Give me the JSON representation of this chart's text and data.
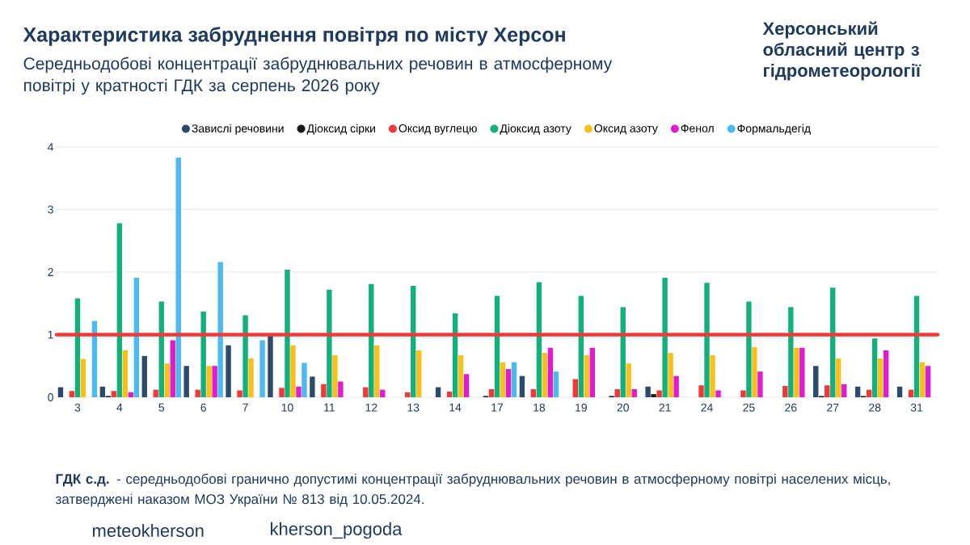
{
  "chart_data": {
    "type": "bar",
    "title": "Характеристика забруднення повітря по місту Херсон",
    "subtitle": "Середньодобові концентрації забруднювальних речовин в атмосферному повітрі у кратності ГДК за серпень 2026 року",
    "categories": [
      "3",
      "4",
      "5",
      "6",
      "7",
      "10",
      "11",
      "12",
      "13",
      "14",
      "17",
      "18",
      "19",
      "20",
      "21",
      "24",
      "25",
      "26",
      "27",
      "28",
      "31"
    ],
    "series": [
      {
        "name": "Завислі речовини",
        "color": "#2c4a6e",
        "values": [
          0.16,
          0.17,
          0.66,
          0.5,
          0.83,
          0.98,
          0.33,
          null,
          null,
          0.16,
          null,
          0.34,
          null,
          null,
          0.17,
          null,
          null,
          null,
          0.5,
          0.17,
          0.17
        ]
      },
      {
        "name": "Діоксид сірки",
        "color": "#1a1a1a",
        "values": [
          null,
          0.02,
          null,
          null,
          null,
          null,
          null,
          null,
          null,
          null,
          0.02,
          null,
          null,
          0.02,
          0.05,
          null,
          null,
          null,
          0.02,
          0.02,
          null
        ]
      },
      {
        "name": "Оксид вуглецю",
        "color": "#f03a3a",
        "values": [
          0.1,
          0.1,
          0.12,
          0.12,
          0.11,
          0.15,
          0.21,
          0.16,
          0.08,
          0.09,
          0.13,
          0.13,
          0.29,
          0.13,
          0.11,
          0.19,
          0.11,
          0.18,
          0.19,
          0.12,
          0.12
        ]
      },
      {
        "name": "Діоксид азоту",
        "color": "#12b07a",
        "values": [
          1.58,
          2.78,
          1.53,
          1.37,
          1.31,
          2.04,
          1.72,
          1.81,
          1.78,
          1.34,
          1.62,
          1.84,
          1.62,
          1.44,
          1.91,
          1.83,
          1.53,
          1.44,
          1.75,
          0.94,
          1.62
        ]
      },
      {
        "name": "Оксид азоту",
        "color": "#f9c01c",
        "values": [
          0.61,
          0.75,
          0.54,
          0.5,
          0.62,
          0.83,
          0.67,
          0.83,
          0.75,
          0.67,
          0.56,
          0.71,
          0.67,
          0.54,
          0.71,
          0.67,
          0.8,
          0.79,
          0.62,
          0.62,
          0.56
        ]
      },
      {
        "name": "Фенол",
        "color": "#e01ccf",
        "values": [
          null,
          0.08,
          0.91,
          0.5,
          null,
          0.17,
          0.25,
          0.12,
          null,
          0.37,
          0.45,
          0.79,
          0.79,
          0.13,
          0.34,
          0.11,
          0.41,
          0.79,
          0.21,
          0.75,
          0.5
        ]
      },
      {
        "name": "Формальдегід",
        "color": "#4cb9f0",
        "values": [
          1.22,
          1.91,
          3.83,
          2.16,
          0.91,
          0.55,
          null,
          null,
          null,
          null,
          0.56,
          0.41,
          null,
          null,
          null,
          null,
          null,
          null,
          null,
          null,
          null
        ]
      }
    ],
    "ylim": [
      0,
      4
    ],
    "yticks": [
      0,
      1,
      2,
      3,
      4
    ],
    "grid": "y",
    "legend": "top",
    "ref_lines": [
      {
        "axis": "y",
        "value": 1,
        "color": "#f03a3a"
      }
    ],
    "annotations": [
      "Херсонський обласний центр з гідрометеорології",
      "**ГДК с.д.** - середньодобові гранично допустимі концентрації забруднювальних речовин в атмосферному повітрі населених місць, затверджені наказом МОЗ України № 813 від 10.05.2024.",
      "meteokherson",
      "kherson_pogoda"
    ]
  }
}
